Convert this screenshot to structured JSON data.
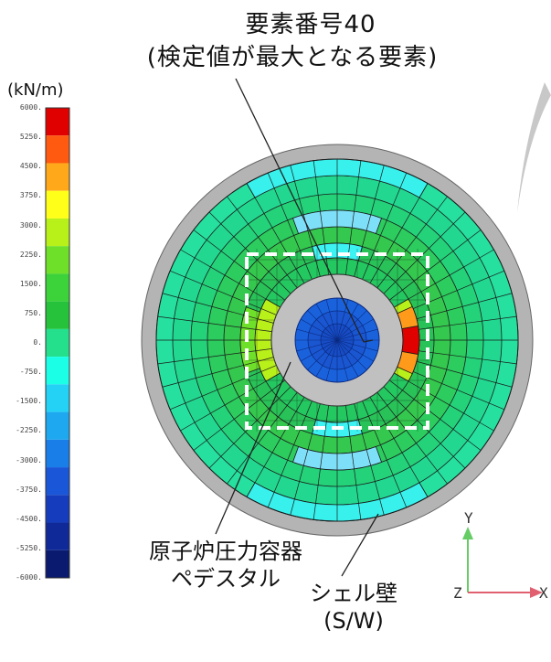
{
  "title_line1": "要素番号40",
  "title_line2": "(検定値が最大となる要素)",
  "legend": {
    "unit": "(kN/m)",
    "ticks": [
      "6000.",
      "5250.",
      "4500.",
      "3750.",
      "3000.",
      "2250.",
      "1500.",
      "750.",
      "0.",
      "-750.",
      "-1500.",
      "-2250.",
      "-3000.",
      "-3750.",
      "-4500.",
      "-5250.",
      "-6000."
    ],
    "colors": [
      "#e00000",
      "#ff5a10",
      "#ffa81a",
      "#ffff1a",
      "#b8f01a",
      "#6ee02a",
      "#3cd23a",
      "#26c23c",
      "#24e08c",
      "#1affe6",
      "#24d2f6",
      "#1ea8f0",
      "#1a7ee8",
      "#1a56d8",
      "#143cbc",
      "#0f2a98",
      "#0a1a6e"
    ]
  },
  "labels": {
    "rpv_pedestal_line1": "原子炉圧力容器",
    "rpv_pedestal_line2": "ペデスタル",
    "shell_wall_line1": "シェル壁",
    "shell_wall_line2": "(S/W)"
  },
  "axes": {
    "y": "Y",
    "z": "Z",
    "x": "X"
  },
  "colors": {
    "shell_gray": "#b4b4b4",
    "mesh_line": "#1a1a1a",
    "axis_y": "#66cc66",
    "axis_x": "#e06070"
  }
}
